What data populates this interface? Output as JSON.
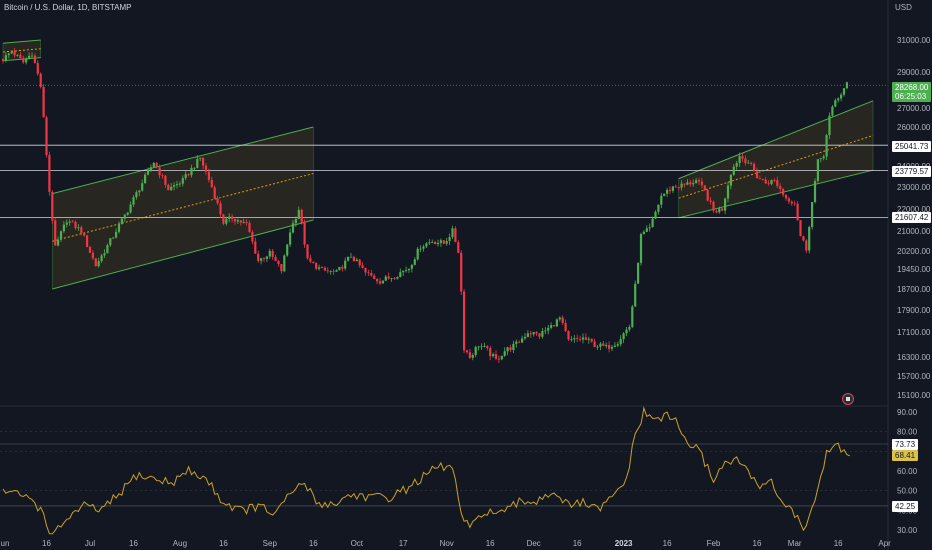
{
  "header": {
    "symbol_line": "Bitcoin / U.S. Dollar, 1D, BITSTAMP",
    "currency": "USD"
  },
  "colors": {
    "background": "#131722",
    "up": "#26a69a",
    "up_candle": "#4caf50",
    "down_candle": "#f23645",
    "channel_line": "#4caf50",
    "channel_fill": "#3a3320",
    "rsi_line": "#c9a227",
    "hline": "#d1d4dc"
  },
  "price_badges": {
    "current_price": "28268.00",
    "countdown": "06:25:03",
    "level_1": "25041.73",
    "level_2": "23779.57",
    "level_3": "21607.42"
  },
  "rsi_badges": {
    "upper": "73.73",
    "current": "68.41",
    "lower": "42.25"
  },
  "chart_data": {
    "type": "candlestick",
    "title": "Bitcoin / U.S. Dollar, 1D, BITSTAMP",
    "currency": "USD",
    "price_axis_ticks": [
      31000,
      29000,
      27000,
      26000,
      25000,
      24000,
      23000,
      22000,
      21000,
      20200,
      19450,
      18700,
      17900,
      17100,
      16300,
      15700,
      15100
    ],
    "price_axis_tick_labels": [
      "31000.00",
      "29000.00",
      "27000.00",
      "26000.00",
      "25000.00",
      "24000.00",
      "23000.00",
      "22000.00",
      "21000.00",
      "20200.00",
      "19450.00",
      "18700.00",
      "17900.00",
      "17100.00",
      "16300.00",
      "15700.00",
      "15100.00"
    ],
    "x_tick_labels": [
      "Jun",
      "16",
      "Jul",
      "16",
      "Aug",
      "16",
      "Sep",
      "16",
      "Oct",
      "17",
      "Nov",
      "16",
      "Dec",
      "16",
      "2023",
      "16",
      "Feb",
      "16",
      "Mar",
      "16",
      "Apr"
    ],
    "x_tick_days": [
      0,
      15,
      30,
      45,
      61,
      76,
      92,
      107,
      122,
      138,
      153,
      168,
      183,
      198,
      214,
      229,
      245,
      260,
      273,
      288,
      304
    ],
    "horizontal_levels": [
      25041.73,
      23779.57,
      21607.42
    ],
    "anchors": [
      {
        "day": 0,
        "close": 29800
      },
      {
        "day": 3,
        "close": 30300
      },
      {
        "day": 7,
        "close": 29600
      },
      {
        "day": 10,
        "close": 30200
      },
      {
        "day": 13,
        "close": 28200
      },
      {
        "day": 16,
        "close": 22800
      },
      {
        "day": 18,
        "close": 20300
      },
      {
        "day": 22,
        "close": 21500
      },
      {
        "day": 27,
        "close": 21000
      },
      {
        "day": 32,
        "close": 19600
      },
      {
        "day": 38,
        "close": 20800
      },
      {
        "day": 42,
        "close": 21700
      },
      {
        "day": 48,
        "close": 23200
      },
      {
        "day": 52,
        "close": 24200
      },
      {
        "day": 57,
        "close": 22900
      },
      {
        "day": 62,
        "close": 23300
      },
      {
        "day": 68,
        "close": 24400
      },
      {
        "day": 72,
        "close": 23000
      },
      {
        "day": 76,
        "close": 21400
      },
      {
        "day": 79,
        "close": 21600
      },
      {
        "day": 84,
        "close": 21300
      },
      {
        "day": 88,
        "close": 19800
      },
      {
        "day": 92,
        "close": 20100
      },
      {
        "day": 96,
        "close": 19400
      },
      {
        "day": 99,
        "close": 21000
      },
      {
        "day": 102,
        "close": 22000
      },
      {
        "day": 105,
        "close": 19800
      },
      {
        "day": 110,
        "close": 19400
      },
      {
        "day": 115,
        "close": 19300
      },
      {
        "day": 120,
        "close": 20000
      },
      {
        "day": 125,
        "close": 19300
      },
      {
        "day": 130,
        "close": 19000
      },
      {
        "day": 135,
        "close": 19200
      },
      {
        "day": 140,
        "close": 19500
      },
      {
        "day": 144,
        "close": 20400
      },
      {
        "day": 148,
        "close": 20600
      },
      {
        "day": 152,
        "close": 20500
      },
      {
        "day": 155,
        "close": 21000
      },
      {
        "day": 157,
        "close": 20200
      },
      {
        "day": 158,
        "close": 18600
      },
      {
        "day": 159,
        "close": 16600
      },
      {
        "day": 161,
        "close": 16300
      },
      {
        "day": 164,
        "close": 16700
      },
      {
        "day": 167,
        "close": 16500
      },
      {
        "day": 170,
        "close": 16200
      },
      {
        "day": 173,
        "close": 16500
      },
      {
        "day": 177,
        "close": 16700
      },
      {
        "day": 181,
        "close": 17100
      },
      {
        "day": 185,
        "close": 17000
      },
      {
        "day": 189,
        "close": 17300
      },
      {
        "day": 192,
        "close": 17600
      },
      {
        "day": 195,
        "close": 16800
      },
      {
        "day": 200,
        "close": 16900
      },
      {
        "day": 204,
        "close": 16700
      },
      {
        "day": 208,
        "close": 16600
      },
      {
        "day": 212,
        "close": 16800
      },
      {
        "day": 216,
        "close": 17300
      },
      {
        "day": 218,
        "close": 18800
      },
      {
        "day": 220,
        "close": 20800
      },
      {
        "day": 223,
        "close": 21100
      },
      {
        "day": 227,
        "close": 22600
      },
      {
        "day": 231,
        "close": 23000
      },
      {
        "day": 235,
        "close": 23100
      },
      {
        "day": 239,
        "close": 23300
      },
      {
        "day": 242,
        "close": 22800
      },
      {
        "day": 245,
        "close": 21900
      },
      {
        "day": 248,
        "close": 22000
      },
      {
        "day": 251,
        "close": 23700
      },
      {
        "day": 254,
        "close": 24500
      },
      {
        "day": 257,
        "close": 24200
      },
      {
        "day": 260,
        "close": 23500
      },
      {
        "day": 263,
        "close": 23200
      },
      {
        "day": 266,
        "close": 23300
      },
      {
        "day": 270,
        "close": 22500
      },
      {
        "day": 273,
        "close": 22300
      },
      {
        "day": 275,
        "close": 20800
      },
      {
        "day": 277,
        "close": 20300
      },
      {
        "day": 279,
        "close": 22300
      },
      {
        "day": 281,
        "close": 24200
      },
      {
        "day": 283,
        "close": 24600
      },
      {
        "day": 285,
        "close": 26500
      },
      {
        "day": 287,
        "close": 27400
      },
      {
        "day": 289,
        "close": 27800
      },
      {
        "day": 291,
        "close": 28300
      }
    ],
    "channels": [
      {
        "start_day": 0,
        "end_day": 13,
        "upper_start": 30800,
        "upper_end": 31000,
        "lower_start": 29700,
        "lower_end": 29900
      },
      {
        "start_day": 17,
        "end_day": 107,
        "upper_start": 22700,
        "upper_end": 26000,
        "lower_start": 18700,
        "lower_end": 21500
      },
      {
        "start_day": 233,
        "end_day": 300,
        "upper_start": 23400,
        "upper_end": 27400,
        "lower_start": 21600,
        "lower_end": 23800
      }
    ],
    "rsi": {
      "axis_ticks": [
        90.0,
        80.0,
        70.0,
        60.0,
        50.0,
        40.0,
        30.0
      ],
      "axis_tick_labels": [
        "90.00",
        "80.00",
        "70.00",
        "60.00",
        "50.00",
        "40.00",
        "30.00"
      ],
      "anchors": [
        {
          "day": 0,
          "v": 50
        },
        {
          "day": 5,
          "v": 48
        },
        {
          "day": 10,
          "v": 46
        },
        {
          "day": 14,
          "v": 38
        },
        {
          "day": 17,
          "v": 26
        },
        {
          "day": 22,
          "v": 36
        },
        {
          "day": 28,
          "v": 42
        },
        {
          "day": 34,
          "v": 40
        },
        {
          "day": 40,
          "v": 48
        },
        {
          "day": 46,
          "v": 58
        },
        {
          "day": 52,
          "v": 56
        },
        {
          "day": 58,
          "v": 54
        },
        {
          "day": 64,
          "v": 60
        },
        {
          "day": 70,
          "v": 56
        },
        {
          "day": 76,
          "v": 44
        },
        {
          "day": 82,
          "v": 40
        },
        {
          "day": 88,
          "v": 42
        },
        {
          "day": 94,
          "v": 38
        },
        {
          "day": 100,
          "v": 50
        },
        {
          "day": 104,
          "v": 54
        },
        {
          "day": 108,
          "v": 44
        },
        {
          "day": 114,
          "v": 43
        },
        {
          "day": 120,
          "v": 48
        },
        {
          "day": 126,
          "v": 47
        },
        {
          "day": 132,
          "v": 46
        },
        {
          "day": 138,
          "v": 50
        },
        {
          "day": 144,
          "v": 56
        },
        {
          "day": 150,
          "v": 62
        },
        {
          "day": 155,
          "v": 62
        },
        {
          "day": 158,
          "v": 38
        },
        {
          "day": 161,
          "v": 30
        },
        {
          "day": 166,
          "v": 40
        },
        {
          "day": 172,
          "v": 38
        },
        {
          "day": 178,
          "v": 44
        },
        {
          "day": 184,
          "v": 45
        },
        {
          "day": 190,
          "v": 50
        },
        {
          "day": 195,
          "v": 42
        },
        {
          "day": 200,
          "v": 44
        },
        {
          "day": 205,
          "v": 40
        },
        {
          "day": 210,
          "v": 46
        },
        {
          "day": 215,
          "v": 56
        },
        {
          "day": 218,
          "v": 78
        },
        {
          "day": 221,
          "v": 90
        },
        {
          "day": 224,
          "v": 86
        },
        {
          "day": 228,
          "v": 88
        },
        {
          "day": 232,
          "v": 86
        },
        {
          "day": 235,
          "v": 76
        },
        {
          "day": 240,
          "v": 70
        },
        {
          "day": 245,
          "v": 56
        },
        {
          "day": 250,
          "v": 66
        },
        {
          "day": 255,
          "v": 64
        },
        {
          "day": 260,
          "v": 52
        },
        {
          "day": 264,
          "v": 56
        },
        {
          "day": 268,
          "v": 46
        },
        {
          "day": 272,
          "v": 40
        },
        {
          "day": 276,
          "v": 30
        },
        {
          "day": 280,
          "v": 46
        },
        {
          "day": 284,
          "v": 68
        },
        {
          "day": 287,
          "v": 74
        },
        {
          "day": 290,
          "v": 70
        },
        {
          "day": 292,
          "v": 68
        }
      ]
    }
  }
}
